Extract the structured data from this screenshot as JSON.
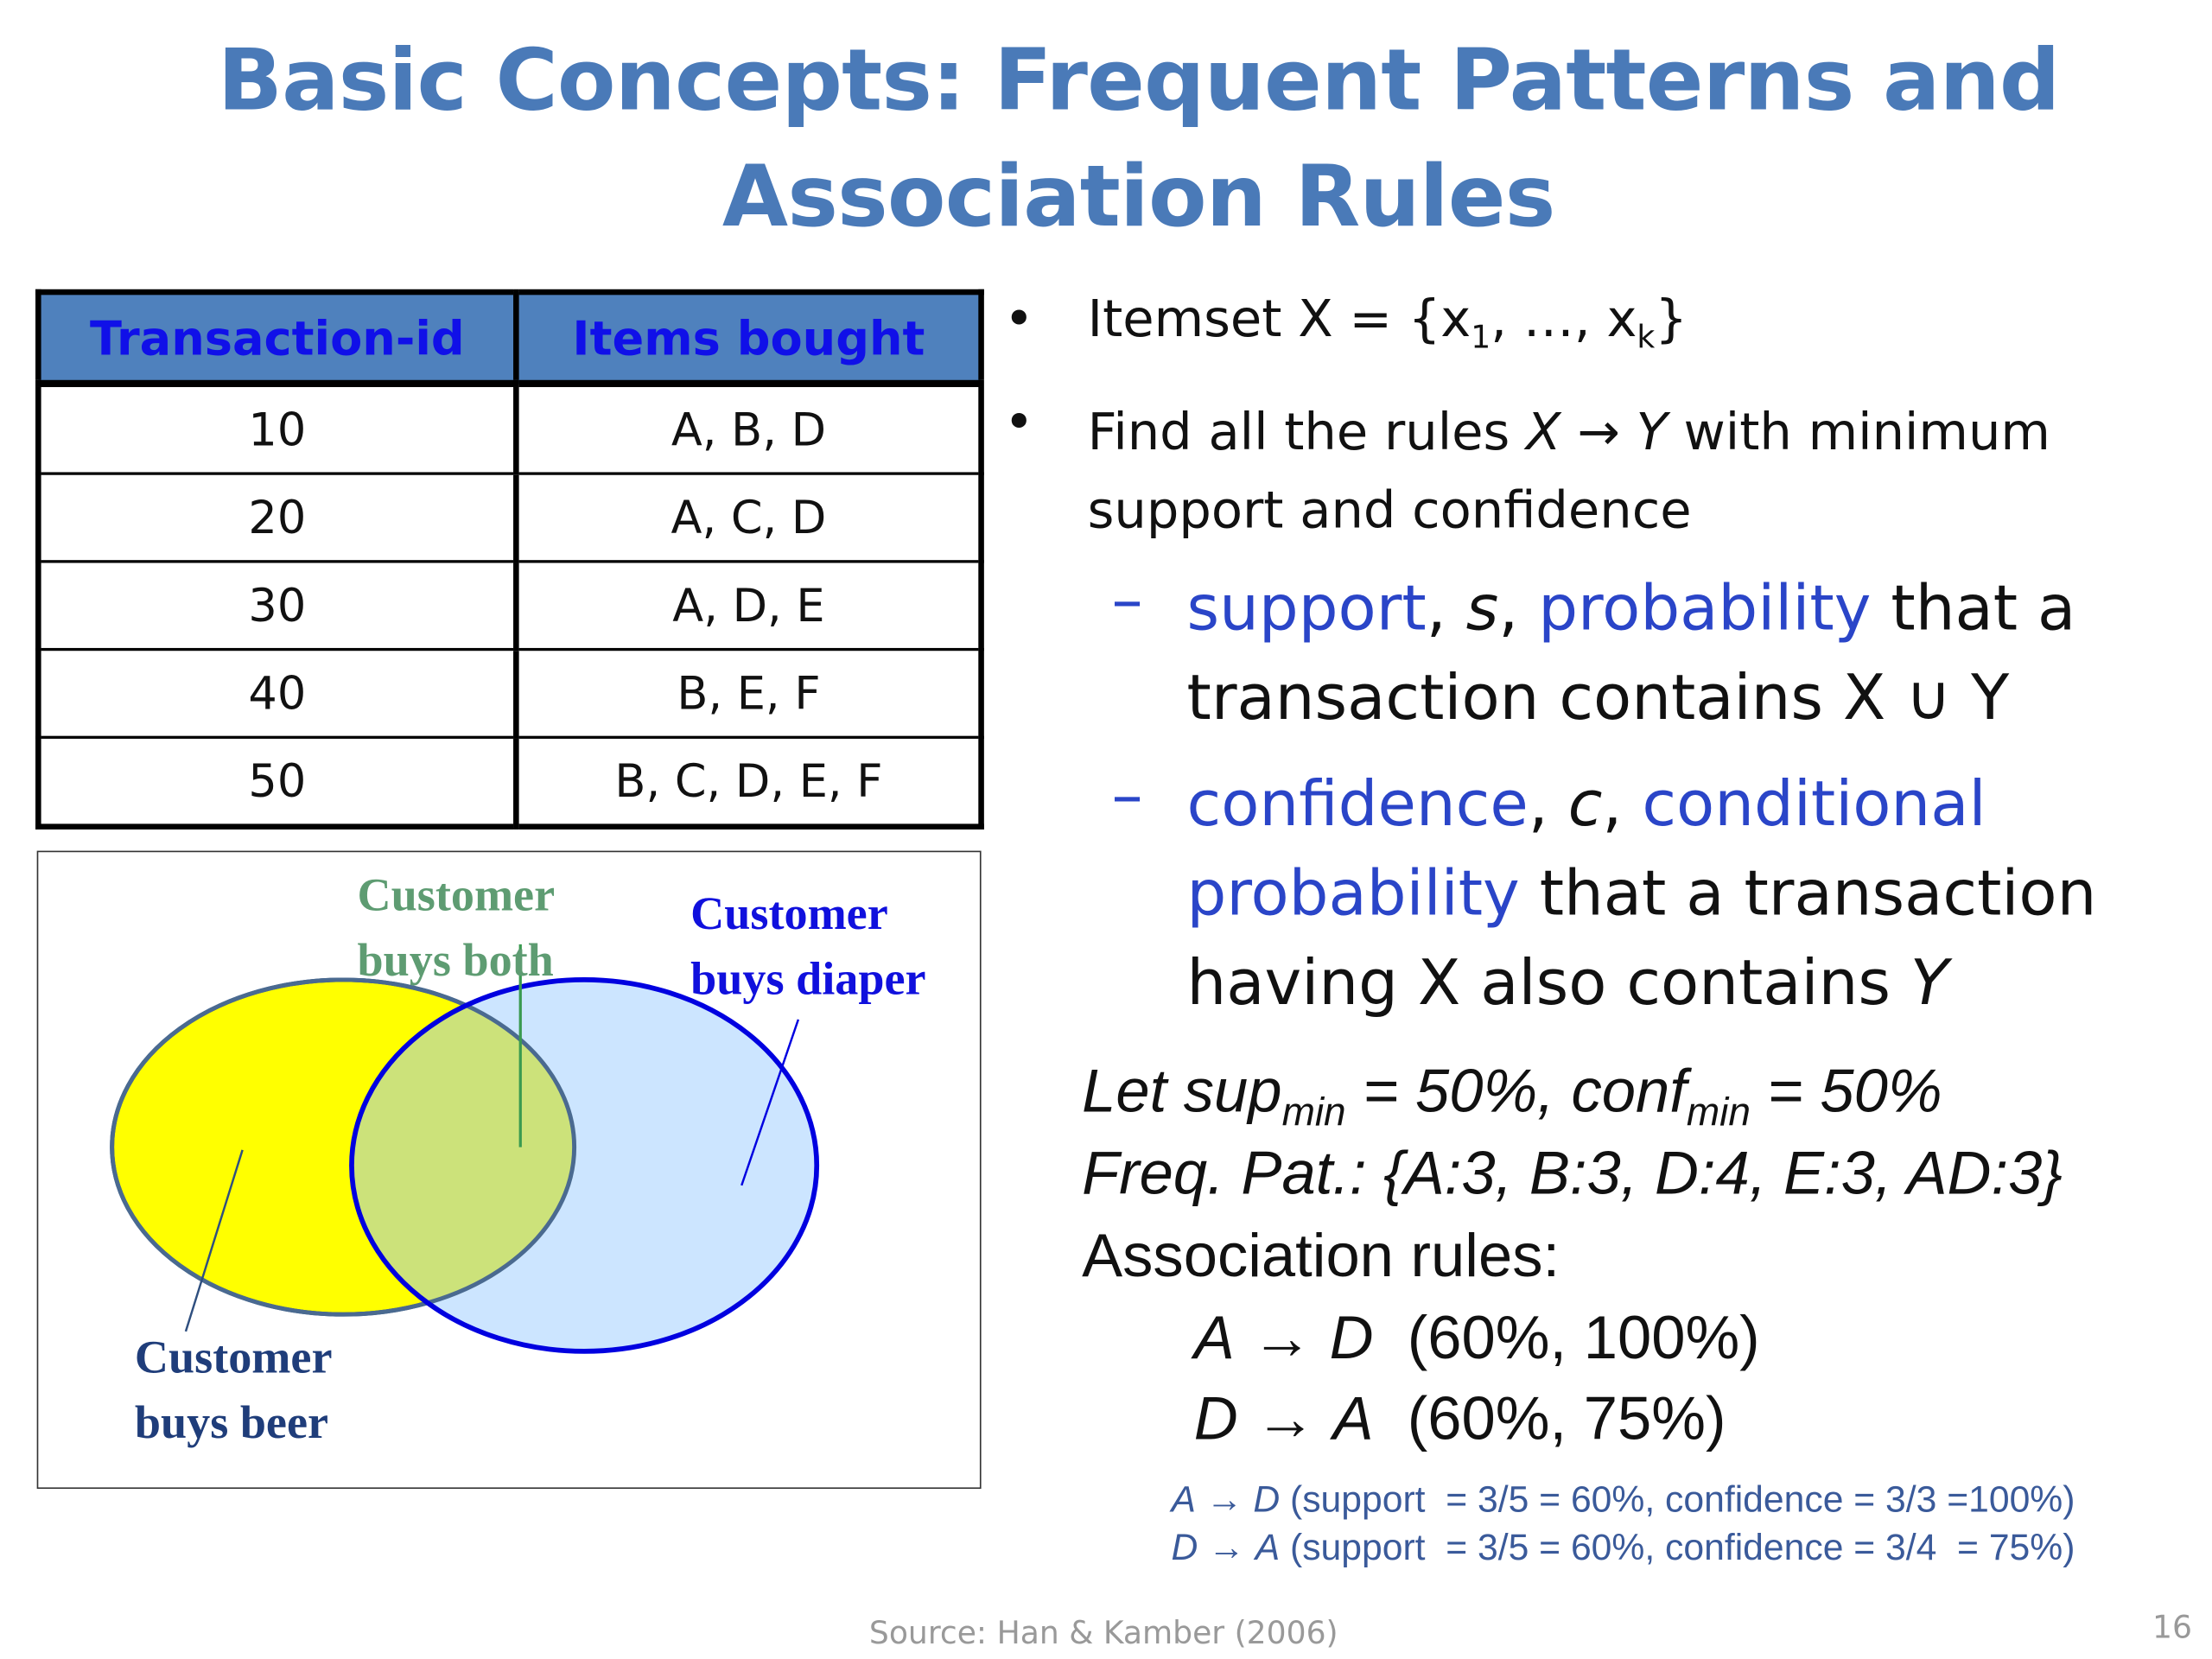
{
  "title": {
    "line1": "Basic Concepts: Frequent Patterns and",
    "line2": "Association Rules"
  },
  "table": {
    "headers": [
      "Transaction-id",
      "Items bought"
    ],
    "rows": [
      [
        "10",
        "A, B, D"
      ],
      [
        "20",
        "A, C, D"
      ],
      [
        "30",
        "A, D, E"
      ],
      [
        "40",
        "B, E, F"
      ],
      [
        "50",
        "B, C, D, E, F"
      ]
    ]
  },
  "venn": {
    "both": [
      "Customer",
      "buys both"
    ],
    "diaper": [
      "Customer",
      "buys diaper"
    ],
    "beer": [
      "Customer",
      "buys beer"
    ],
    "colors": {
      "beer_fill": "#ffff00",
      "diaper_fill": "#cce5ff",
      "overlap": "#cce27a",
      "beer_stroke": "#2f4f7f",
      "diaper_stroke": "#0000e0"
    }
  },
  "bullets": {
    "b1": {
      "pre": "Itemset X = {x",
      "sub1": "1",
      "mid": ", …, x",
      "subk": "k",
      "post": "}"
    },
    "b2": {
      "l1a": "Find all the rules ",
      "x": "X",
      "arrow": " → ",
      "y": "Y",
      "l1b": " with minimum",
      "l2": "support and confidence"
    },
    "s1": {
      "term": "support",
      "sep": ", ",
      "sym": "s",
      "sep2": ", ",
      "term2": "probability",
      "rest": " that a",
      "l2": "transaction contains X ∪ Y"
    },
    "s2": {
      "term": "confidence",
      "sep": ", ",
      "sym": "c",
      "sep2": ", ",
      "term2": "conditional",
      "l2a": "probability",
      "l2b": " that a transaction",
      "l3": "having X also contains ",
      "l3y": "Y"
    }
  },
  "example": {
    "let": {
      "a": "Let  sup",
      "sub1": "min",
      "b": " = 50%,  conf",
      "sub2": "min",
      "c": " = 50%"
    },
    "freq": {
      "label": "Freq. Pat.: ",
      "value": "{A:3, B:3, D:4, E:3, AD:3}"
    },
    "assoc_label": "Association rules:",
    "rules": [
      {
        "lhs": "A",
        "rhs": "D",
        "vals": "  (60%, 100%)"
      },
      {
        "lhs": "D",
        "rhs": "A",
        "vals": "  (60%, 75%)"
      }
    ],
    "details": [
      {
        "lhs": "A",
        "rhs": "D",
        "text": " (support  = 3/5 = 60%, confidence = 3/3 =100%)"
      },
      {
        "lhs": "D",
        "rhs": "A",
        "text": " (support  = 3/5 = 60%, confidence = 3/4  = 75%)"
      }
    ]
  },
  "footer": {
    "source": "Source: Han & Kamber (2006)",
    "page": "16"
  }
}
